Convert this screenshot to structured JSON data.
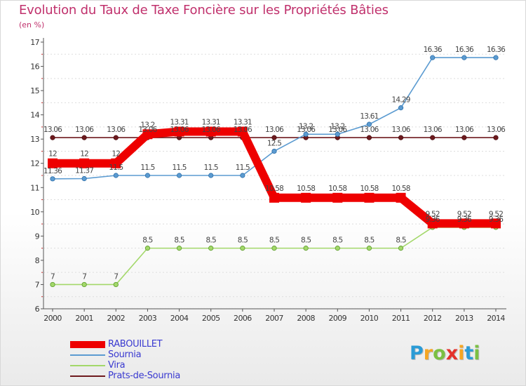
{
  "title": "Evolution du Taux de Taxe Foncière sur les Propriétés Bâties",
  "subtitle": "(en %)",
  "chart_data": {
    "type": "line",
    "title": "Evolution du Taux de Taxe Foncière sur les Propriétés Bâties",
    "ylabel": "(en %)",
    "xlabel": "",
    "ylim": [
      6,
      17
    ],
    "yticks": [
      6,
      7,
      8,
      9,
      10,
      11,
      12,
      13,
      14,
      15,
      16,
      17
    ],
    "categories": [
      "2000",
      "2001",
      "2002",
      "2003",
      "2004",
      "2005",
      "2006",
      "2007",
      "2008",
      "2009",
      "2010",
      "2011",
      "2012",
      "2013",
      "2014"
    ],
    "series": [
      {
        "name": "Prats-de-Sournia",
        "color": "#6e1a1e",
        "values": [
          13.06,
          13.06,
          13.06,
          13.06,
          13.06,
          13.06,
          13.06,
          13.06,
          13.06,
          13.06,
          13.06,
          13.06,
          13.06,
          13.06,
          13.06
        ],
        "labels": [
          "13.06",
          "13.06",
          "13.06",
          "13.06",
          "13.06",
          "13.06",
          "13.06",
          "13.06",
          "13.06",
          "13.06",
          "13.06",
          "13.06",
          "13.06",
          "13.06",
          "13.06"
        ]
      },
      {
        "name": "Vira",
        "color": "#a3d86a",
        "values": [
          7,
          7,
          7,
          8.5,
          8.5,
          8.5,
          8.5,
          8.5,
          8.5,
          8.5,
          8.5,
          8.5,
          9.36,
          9.36,
          9.36
        ],
        "labels": [
          "7",
          "7",
          "7",
          "8.5",
          "8.5",
          "8.5",
          "8.5",
          "8.5",
          "8.5",
          "8.5",
          "8.5",
          "8.5",
          "9.36",
          "9.36",
          "9.36"
        ]
      },
      {
        "name": "Sournia",
        "color": "#5b9bd1",
        "values": [
          11.36,
          11.37,
          11.5,
          11.5,
          11.5,
          11.5,
          11.5,
          12.5,
          13.2,
          13.2,
          13.61,
          14.29,
          16.36,
          16.36,
          16.36
        ],
        "labels": [
          "11.36",
          "11.37",
          "11.5",
          "11.5",
          "11.5",
          "11.5",
          "11.5",
          "12.5",
          "13.2",
          "13.2",
          "13.61",
          "14.29",
          "16.36",
          "16.36",
          "16.36"
        ]
      },
      {
        "name": "RABOUILLET",
        "color": "#ee0000",
        "values": [
          12,
          12,
          12,
          13.2,
          13.31,
          13.31,
          13.31,
          10.58,
          10.58,
          10.58,
          10.58,
          10.58,
          9.52,
          9.52,
          9.52
        ],
        "labels": [
          "12",
          "12",
          "12",
          "13.2",
          "13.31",
          "13.31",
          "13.31",
          "10.58",
          "10.58",
          "10.58",
          "10.58",
          "10.58",
          "9.52",
          "9.52",
          "9.52"
        ]
      }
    ],
    "legend": {
      "position": "bottom-left",
      "order": [
        "RABOUILLET",
        "Sournia",
        "Vira",
        "Prats-de-Sournia"
      ]
    }
  },
  "logo": {
    "letters": [
      "P",
      "r",
      "o",
      "x",
      "i",
      "t",
      "i"
    ],
    "colors": [
      "#2a9bd6",
      "#f5a623",
      "#7bc043",
      "#e4312b",
      "#f5a623",
      "#2a9bd6",
      "#7bc043"
    ]
  }
}
